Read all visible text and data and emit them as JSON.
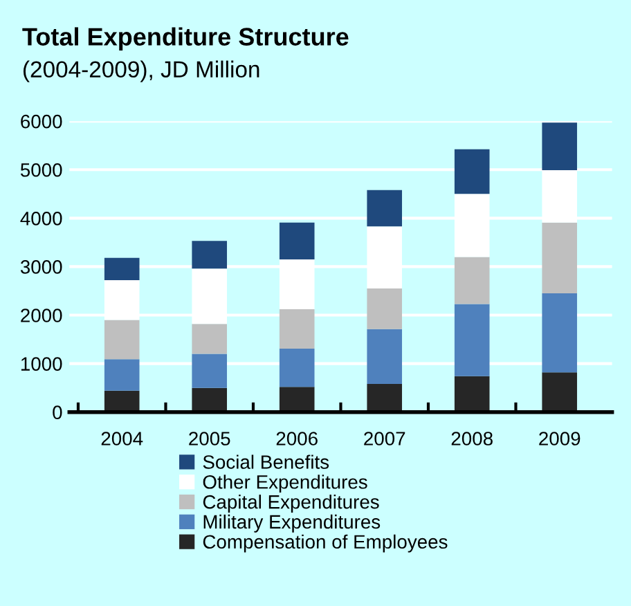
{
  "chart_data": {
    "type": "bar",
    "title": "Total Expenditure Structure",
    "subtitle": "(2004-2009), JD Million",
    "categories": [
      "2004",
      "2005",
      "2006",
      "2007",
      "2008",
      "2009"
    ],
    "stacked": true,
    "series": [
      {
        "name": "Compensation of Employees",
        "color": "#262626",
        "values": [
          440,
          500,
          520,
          580,
          740,
          820
        ]
      },
      {
        "name": "Military Expenditures",
        "color": "#4f81bd",
        "values": [
          650,
          700,
          790,
          1130,
          1490,
          1630
        ]
      },
      {
        "name": "Capital Expenditures",
        "color": "#bfbfbf",
        "values": [
          810,
          620,
          810,
          840,
          970,
          1460
        ]
      },
      {
        "name": "Other Expenditures",
        "color": "#ffffff",
        "values": [
          820,
          1140,
          1030,
          1280,
          1300,
          1080
        ]
      },
      {
        "name": "Social Benefits",
        "color": "#1f497d",
        "values": [
          460,
          570,
          760,
          750,
          920,
          980
        ]
      }
    ],
    "ylim": [
      0,
      6000
    ],
    "yticks": [
      0,
      1000,
      2000,
      3000,
      4000,
      5000,
      6000
    ],
    "grid": "y",
    "legend": "bottom"
  }
}
